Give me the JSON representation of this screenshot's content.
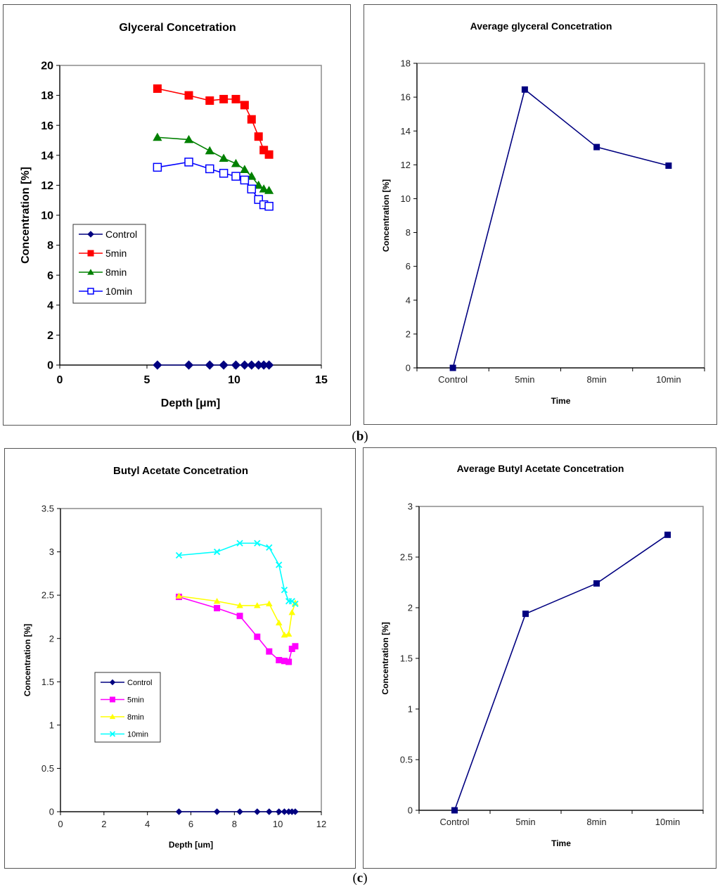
{
  "figure": {
    "subfigure_labels": {
      "b": "b",
      "c": "c"
    }
  },
  "chart_data": [
    {
      "id": "glyceral-depth",
      "type": "line",
      "title": "Glyceral Concetration",
      "xlabel": "Depth [μm]",
      "ylabel": "Concentration [%]",
      "xlim": [
        0,
        15
      ],
      "ylim": [
        0,
        20
      ],
      "xticks": [
        0,
        5,
        10,
        15
      ],
      "yticks": [
        0,
        2,
        4,
        6,
        8,
        10,
        12,
        14,
        16,
        18,
        20
      ],
      "grid": false,
      "legend_position": "middle-left",
      "x": [
        5.6,
        7.4,
        8.6,
        9.4,
        10.1,
        10.6,
        11.0,
        11.4,
        11.7,
        12.0
      ],
      "series": [
        {
          "name": "Control",
          "color": "#000080",
          "marker": "diamond",
          "values": [
            0,
            0,
            0,
            0,
            0,
            0,
            0,
            0,
            0,
            0
          ]
        },
        {
          "name": "5min",
          "color": "#ff0000",
          "marker": "square",
          "values": [
            18.45,
            18.0,
            17.65,
            17.75,
            17.75,
            17.35,
            16.4,
            15.25,
            14.35,
            14.05
          ]
        },
        {
          "name": "8min",
          "color": "#008000",
          "marker": "triangle",
          "values": [
            15.2,
            15.05,
            14.3,
            13.8,
            13.45,
            13.05,
            12.6,
            12.0,
            11.75,
            11.65
          ]
        },
        {
          "name": "10min",
          "color": "#0000ff",
          "marker": "open-square",
          "values": [
            13.2,
            13.55,
            13.1,
            12.8,
            12.6,
            12.35,
            11.75,
            11.05,
            10.7,
            10.6
          ]
        }
      ]
    },
    {
      "id": "glyceral-average",
      "type": "line",
      "title": "Average glyceral Concetration",
      "xlabel": "Time",
      "ylabel": "Concentration [%]",
      "ylim": [
        0,
        18
      ],
      "yticks": [
        0,
        2,
        4,
        6,
        8,
        10,
        12,
        14,
        16,
        18
      ],
      "grid": false,
      "categories": [
        "Control",
        "5min",
        "8min",
        "10min"
      ],
      "series": [
        {
          "name": "Average",
          "color": "#000080",
          "marker": "square",
          "values": [
            0,
            16.45,
            13.05,
            11.95
          ]
        }
      ]
    },
    {
      "id": "butyl-depth",
      "type": "line",
      "title": "Butyl Acetate Concetration",
      "xlabel": "Depth [um]",
      "ylabel": "Concentration [%]",
      "xlim": [
        0,
        12
      ],
      "ylim": [
        0,
        3.5
      ],
      "xticks": [
        0,
        2,
        4,
        6,
        8,
        10,
        12
      ],
      "yticks": [
        0,
        0.5,
        1,
        1.5,
        2,
        2.5,
        3,
        3.5
      ],
      "grid": false,
      "legend_position": "lower-left",
      "x": [
        5.45,
        7.2,
        8.25,
        9.05,
        9.6,
        10.05,
        10.3,
        10.5,
        10.65,
        10.8
      ],
      "series": [
        {
          "name": "Control",
          "color": "#000080",
          "marker": "diamond",
          "values": [
            0,
            0,
            0,
            0,
            0,
            0,
            0,
            0,
            0,
            0
          ]
        },
        {
          "name": "5min",
          "color": "#ff00ff",
          "marker": "square",
          "values": [
            2.48,
            2.35,
            2.26,
            2.02,
            1.85,
            1.75,
            1.74,
            1.73,
            1.88,
            1.91
          ]
        },
        {
          "name": "8min",
          "color": "#ffff00",
          "marker": "triangle",
          "values": [
            2.49,
            2.43,
            2.38,
            2.38,
            2.4,
            2.18,
            2.04,
            2.05,
            2.3,
            2.41
          ]
        },
        {
          "name": "10min",
          "color": "#00ffff",
          "marker": "x",
          "values": [
            2.96,
            3.0,
            3.1,
            3.1,
            3.05,
            2.85,
            2.56,
            2.43,
            2.43,
            2.4
          ]
        }
      ]
    },
    {
      "id": "butyl-average",
      "type": "line",
      "title": "Average Butyl Acetate Concetration",
      "xlabel": "Time",
      "ylabel": "Concentration [%]",
      "ylim": [
        0,
        3
      ],
      "yticks": [
        0,
        0.5,
        1,
        1.5,
        2,
        2.5,
        3
      ],
      "grid": false,
      "categories": [
        "Control",
        "5min",
        "8min",
        "10min"
      ],
      "series": [
        {
          "name": "Average",
          "color": "#000080",
          "marker": "square",
          "values": [
            0,
            1.94,
            2.24,
            2.72
          ]
        }
      ]
    }
  ]
}
